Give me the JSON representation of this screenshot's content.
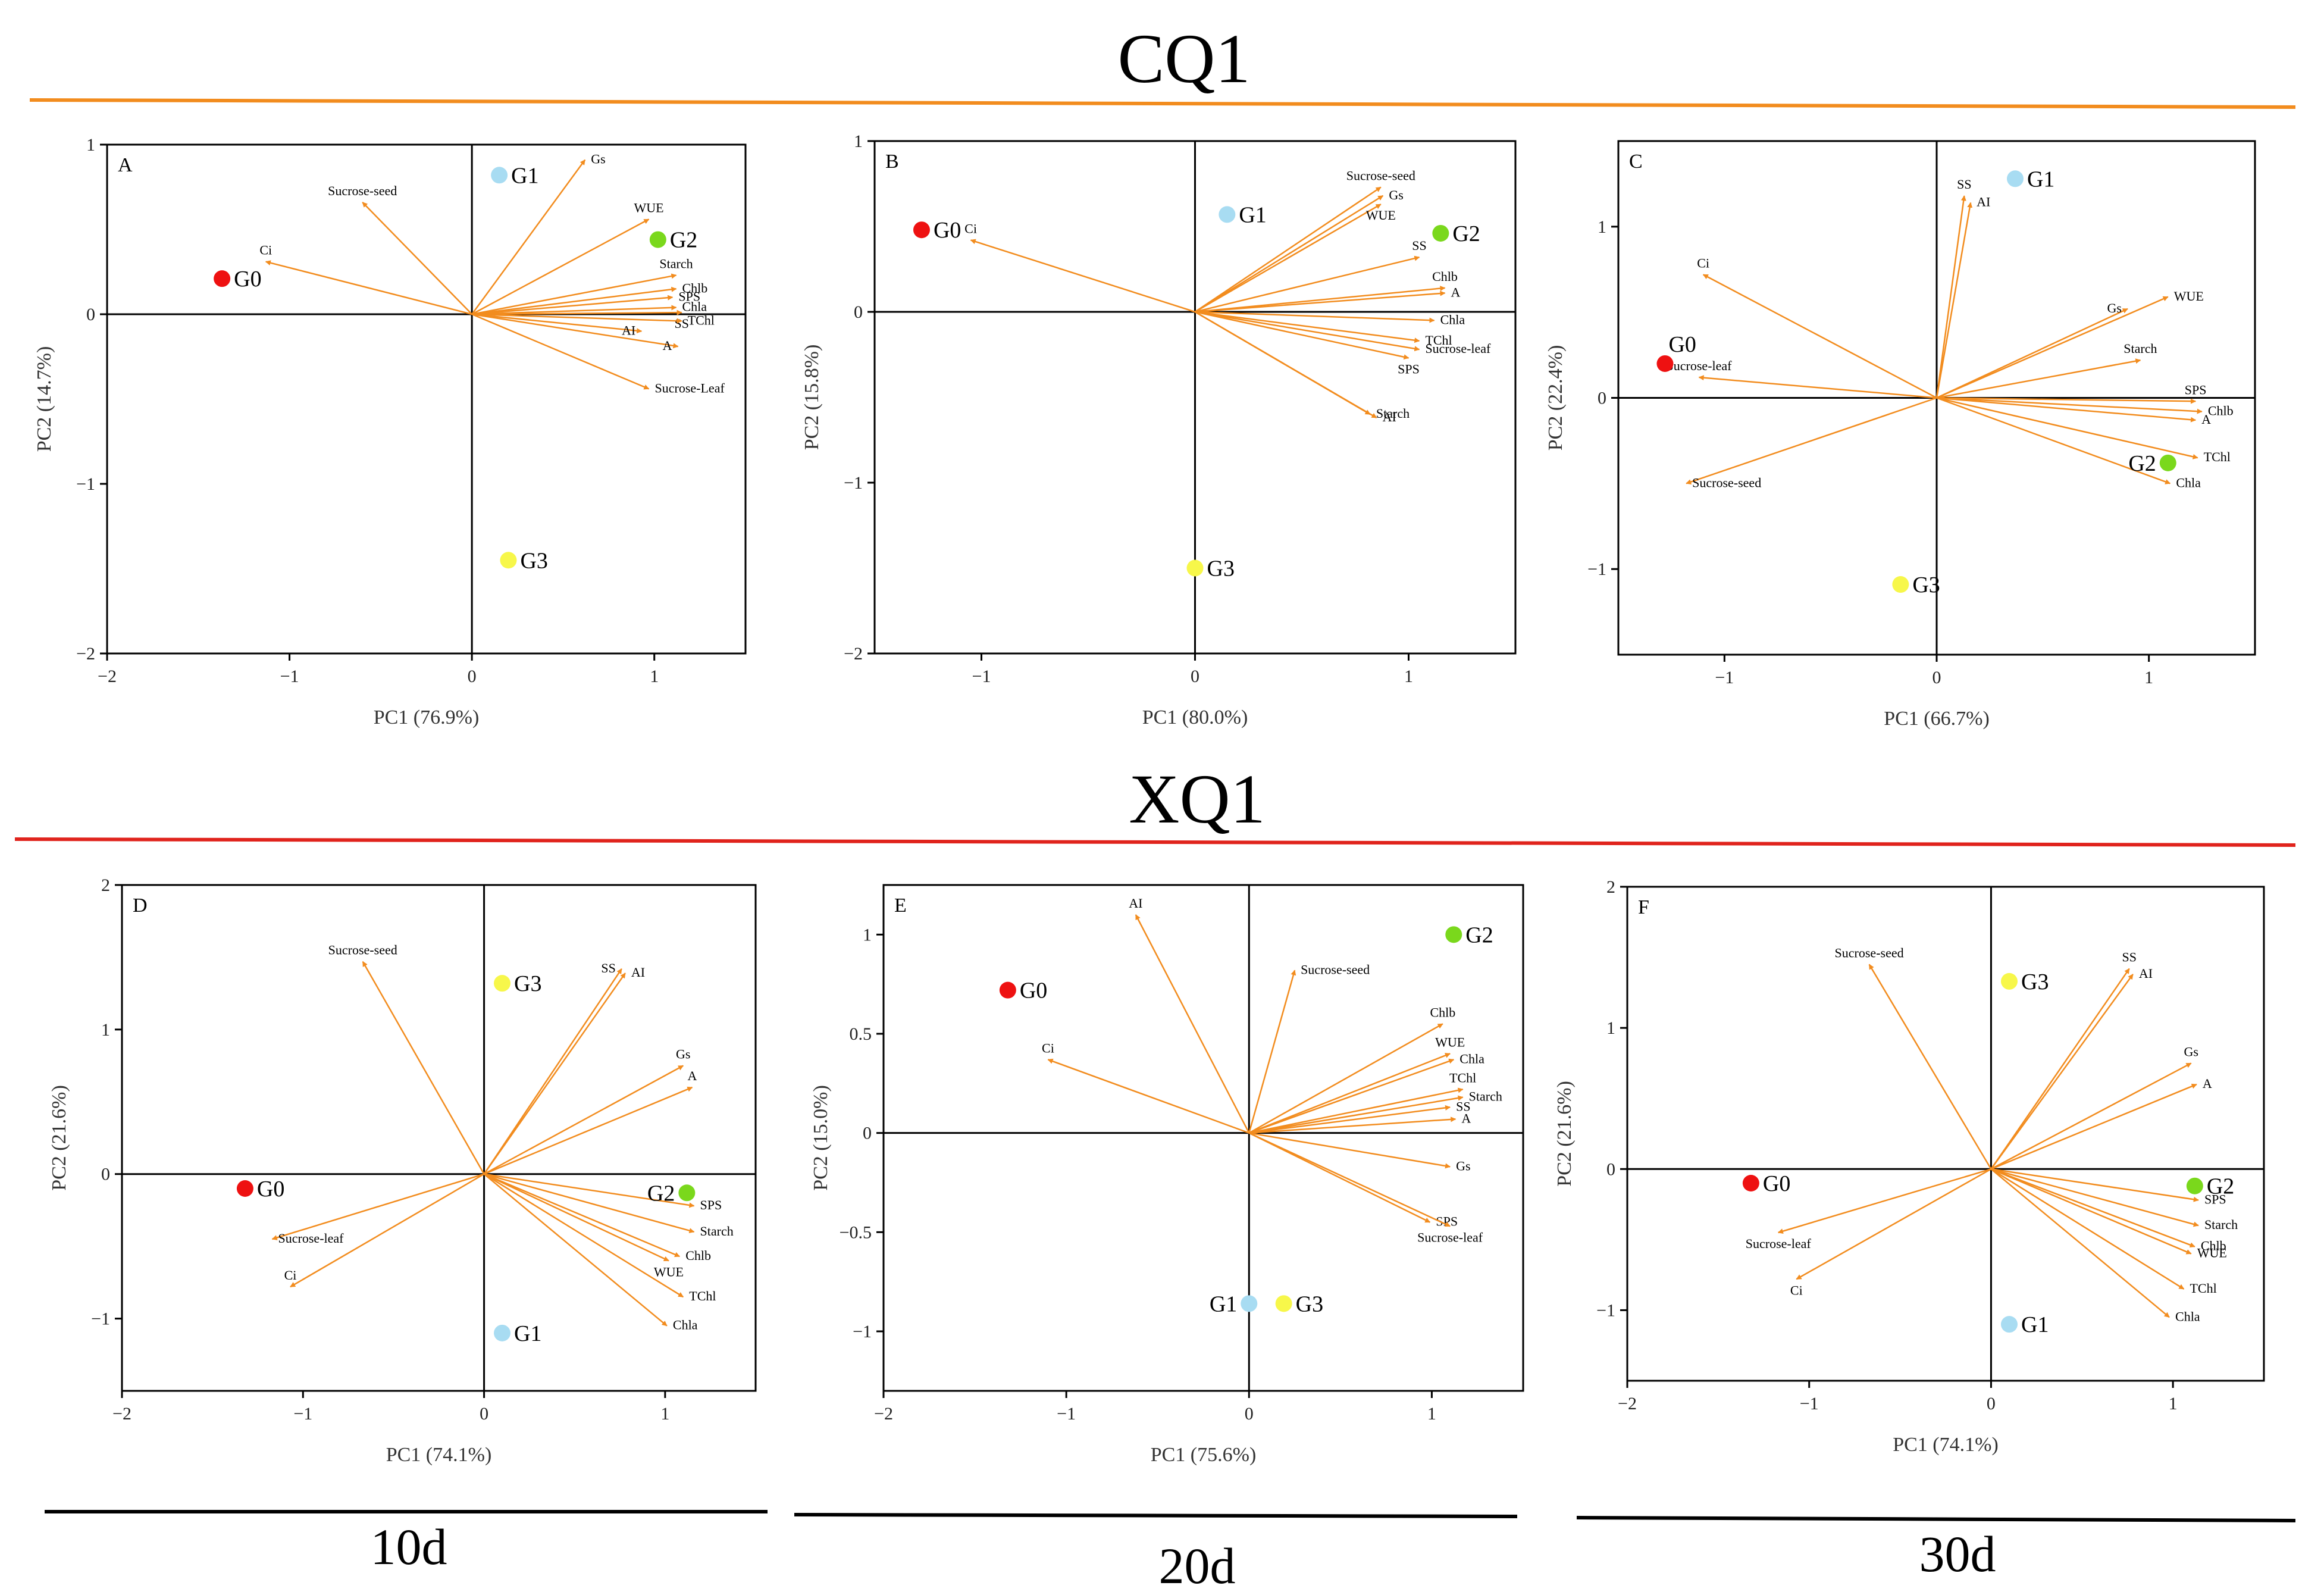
{
  "colors": {
    "vector": "#f28c1e",
    "cq1_rule": "#f28c1e",
    "xq1_rule": "#e0231c",
    "time_rule": "#000000",
    "G0": "#ee1111",
    "G1": "#a8dcf2",
    "G2": "#7ad81c",
    "G3": "#f7f74a"
  },
  "section_titles": {
    "cq1": "CQ1",
    "xq1": "XQ1"
  },
  "time_labels": [
    "10d",
    "20d",
    "30d"
  ],
  "chart_data": [
    {
      "type": "scatter",
      "panel": "A",
      "xlabel": "PC1 (76.9%)",
      "ylabel": "PC2 (14.7%)",
      "xlim": [
        -2,
        1.5
      ],
      "ylim": [
        -2,
        1
      ],
      "xticks": [
        -2,
        -1,
        0,
        1
      ],
      "yticks": [
        -2,
        -1,
        0,
        1
      ],
      "points": [
        {
          "name": "G0",
          "x": -1.37,
          "y": 0.21,
          "color": "G0",
          "lpos": "right"
        },
        {
          "name": "G1",
          "x": 0.15,
          "y": 0.82,
          "color": "G1",
          "lpos": "right"
        },
        {
          "name": "G2",
          "x": 1.02,
          "y": 0.44,
          "color": "G2",
          "lpos": "right"
        },
        {
          "name": "G3",
          "x": 0.2,
          "y": -1.45,
          "color": "G3",
          "lpos": "right"
        }
      ],
      "vectors": [
        {
          "name": "Sucrose-seed",
          "x": -0.6,
          "y": 0.66,
          "lpos": "above"
        },
        {
          "name": "Ci",
          "x": -1.13,
          "y": 0.31,
          "lpos": "above"
        },
        {
          "name": "Gs",
          "x": 0.62,
          "y": 0.91,
          "lpos": "right"
        },
        {
          "name": "WUE",
          "x": 0.97,
          "y": 0.56,
          "lpos": "above"
        },
        {
          "name": "Starch",
          "x": 1.12,
          "y": 0.23,
          "lpos": "above"
        },
        {
          "name": "Chlb",
          "x": 1.12,
          "y": 0.15,
          "lpos": "right"
        },
        {
          "name": "SPS",
          "x": 1.1,
          "y": 0.1,
          "lpos": "right"
        },
        {
          "name": "Chla",
          "x": 1.12,
          "y": 0.04,
          "lpos": "right"
        },
        {
          "name": "SS",
          "x": 1.15,
          "y": 0.01,
          "lpos": "below"
        },
        {
          "name": "TChl",
          "x": 1.15,
          "y": -0.04,
          "lpos": "right"
        },
        {
          "name": "AI",
          "x": 0.93,
          "y": -0.1,
          "lpos": "left"
        },
        {
          "name": "A",
          "x": 1.13,
          "y": -0.19,
          "lpos": "left"
        },
        {
          "name": "Sucrose-Leaf",
          "x": 0.97,
          "y": -0.44,
          "lpos": "right"
        }
      ]
    },
    {
      "type": "scatter",
      "panel": "B",
      "xlabel": "PC1 (80.0%)",
      "ylabel": "PC2 (15.8%)",
      "xlim": [
        -1.5,
        1.5
      ],
      "ylim": [
        -2,
        1
      ],
      "xticks": [
        -1,
        0,
        1
      ],
      "yticks": [
        -2,
        -1,
        0,
        1
      ],
      "points": [
        {
          "name": "G0",
          "x": -1.28,
          "y": 0.48,
          "color": "G0",
          "lpos": "right"
        },
        {
          "name": "G1",
          "x": 0.15,
          "y": 0.57,
          "color": "G1",
          "lpos": "right"
        },
        {
          "name": "G2",
          "x": 1.15,
          "y": 0.46,
          "color": "G2",
          "lpos": "right"
        },
        {
          "name": "G3",
          "x": 0.0,
          "y": -1.5,
          "color": "G3",
          "lpos": "right"
        }
      ],
      "vectors": [
        {
          "name": "Ci",
          "x": -1.05,
          "y": 0.42,
          "lpos": "above"
        },
        {
          "name": "Sucrose-seed",
          "x": 0.87,
          "y": 0.73,
          "lpos": "above"
        },
        {
          "name": "Gs",
          "x": 0.88,
          "y": 0.68,
          "lpos": "right"
        },
        {
          "name": "WUE",
          "x": 0.87,
          "y": 0.63,
          "lpos": "below"
        },
        {
          "name": "SS",
          "x": 1.05,
          "y": 0.32,
          "lpos": "above"
        },
        {
          "name": "Chlb",
          "x": 1.17,
          "y": 0.14,
          "lpos": "above"
        },
        {
          "name": "A",
          "x": 1.17,
          "y": 0.11,
          "lpos": "right"
        },
        {
          "name": "Chla",
          "x": 1.12,
          "y": -0.05,
          "lpos": "right"
        },
        {
          "name": "TChl",
          "x": 1.05,
          "y": -0.17,
          "lpos": "right"
        },
        {
          "name": "Sucrose-leaf",
          "x": 1.05,
          "y": -0.22,
          "lpos": "right"
        },
        {
          "name": "SPS",
          "x": 1.0,
          "y": -0.27,
          "lpos": "below"
        },
        {
          "name": "Starch",
          "x": 0.82,
          "y": -0.6,
          "lpos": "right"
        },
        {
          "name": "AI",
          "x": 0.85,
          "y": -0.62,
          "lpos": "right"
        }
      ]
    },
    {
      "type": "scatter",
      "panel": "C",
      "xlabel": "PC1 (66.7%)",
      "ylabel": "PC2 (22.4%)",
      "xlim": [
        -1.5,
        1.5
      ],
      "ylim": [
        -1.5,
        1.5
      ],
      "xticks": [
        -1,
        0,
        1
      ],
      "yticks": [
        -1,
        0,
        1
      ],
      "points": [
        {
          "name": "G0",
          "x": -1.28,
          "y": 0.2,
          "color": "G0",
          "lpos": "aboveright"
        },
        {
          "name": "G1",
          "x": 0.37,
          "y": 1.28,
          "color": "G1",
          "lpos": "right"
        },
        {
          "name": "G2",
          "x": 1.09,
          "y": -0.38,
          "color": "G2",
          "lpos": "left"
        },
        {
          "name": "G3",
          "x": -0.17,
          "y": -1.09,
          "color": "G3",
          "lpos": "right"
        }
      ],
      "vectors": [
        {
          "name": "SS",
          "x": 0.13,
          "y": 1.18,
          "lpos": "above"
        },
        {
          "name": "AI",
          "x": 0.16,
          "y": 1.14,
          "lpos": "right"
        },
        {
          "name": "Ci",
          "x": -1.1,
          "y": 0.72,
          "lpos": "above"
        },
        {
          "name": "Gs",
          "x": 0.9,
          "y": 0.52,
          "lpos": "left"
        },
        {
          "name": "WUE",
          "x": 1.09,
          "y": 0.59,
          "lpos": "right"
        },
        {
          "name": "Starch",
          "x": 0.96,
          "y": 0.22,
          "lpos": "above"
        },
        {
          "name": "Sucrose-leaf",
          "x": -1.12,
          "y": 0.12,
          "lpos": "above"
        },
        {
          "name": "SPS",
          "x": 1.22,
          "y": -0.02,
          "lpos": "above"
        },
        {
          "name": "Chlb",
          "x": 1.25,
          "y": -0.08,
          "lpos": "right"
        },
        {
          "name": "A",
          "x": 1.22,
          "y": -0.13,
          "lpos": "right"
        },
        {
          "name": "TChl",
          "x": 1.23,
          "y": -0.35,
          "lpos": "right"
        },
        {
          "name": "Chla",
          "x": 1.1,
          "y": -0.5,
          "lpos": "right"
        },
        {
          "name": "Sucrose-seed",
          "x": -1.18,
          "y": -0.5,
          "lpos": "right"
        }
      ]
    },
    {
      "type": "scatter",
      "panel": "D",
      "xlabel": "PC1 (74.1%)",
      "ylabel": "PC2 (21.6%)",
      "xlim": [
        -2,
        1.5
      ],
      "ylim": [
        -1.5,
        2
      ],
      "xticks": [
        -2,
        -1,
        0,
        1
      ],
      "yticks": [
        -1,
        0,
        1,
        2
      ],
      "points": [
        {
          "name": "G0",
          "x": -1.32,
          "y": -0.1,
          "color": "G0",
          "lpos": "right"
        },
        {
          "name": "G1",
          "x": 0.1,
          "y": -1.1,
          "color": "G1",
          "lpos": "right"
        },
        {
          "name": "G2",
          "x": 1.12,
          "y": -0.13,
          "color": "G2",
          "lpos": "left"
        },
        {
          "name": "G3",
          "x": 0.1,
          "y": 1.32,
          "color": "G3",
          "lpos": "right"
        }
      ],
      "vectors": [
        {
          "name": "Sucrose-seed",
          "x": -0.67,
          "y": 1.47,
          "lpos": "above"
        },
        {
          "name": "SS",
          "x": 0.76,
          "y": 1.42,
          "lpos": "left"
        },
        {
          "name": "AI",
          "x": 0.78,
          "y": 1.39,
          "lpos": "right"
        },
        {
          "name": "Gs",
          "x": 1.1,
          "y": 0.75,
          "lpos": "above"
        },
        {
          "name": "A",
          "x": 1.15,
          "y": 0.6,
          "lpos": "above"
        },
        {
          "name": "SPS",
          "x": 1.16,
          "y": -0.22,
          "lpos": "right"
        },
        {
          "name": "Starch",
          "x": 1.16,
          "y": -0.4,
          "lpos": "right"
        },
        {
          "name": "Chlb",
          "x": 1.08,
          "y": -0.57,
          "lpos": "right"
        },
        {
          "name": "WUE",
          "x": 1.02,
          "y": -0.6,
          "lpos": "below"
        },
        {
          "name": "TChl",
          "x": 1.1,
          "y": -0.85,
          "lpos": "right"
        },
        {
          "name": "Chla",
          "x": 1.01,
          "y": -1.05,
          "lpos": "right"
        },
        {
          "name": "Sucrose-leaf",
          "x": -1.17,
          "y": -0.45,
          "lpos": "right"
        },
        {
          "name": "Ci",
          "x": -1.07,
          "y": -0.78,
          "lpos": "above"
        }
      ]
    },
    {
      "type": "scatter",
      "panel": "E",
      "xlabel": "PC1 (75.6%)",
      "ylabel": "PC2 (15.0%)",
      "xlim": [
        -2,
        1.5
      ],
      "ylim": [
        -1.3,
        1.25
      ],
      "xticks": [
        -2,
        -1,
        0,
        1
      ],
      "yticks": [
        -1.0,
        -0.5,
        0.0,
        0.5,
        1.0
      ],
      "points": [
        {
          "name": "G0",
          "x": -1.32,
          "y": 0.72,
          "color": "G0",
          "lpos": "right"
        },
        {
          "name": "G1",
          "x": 0.0,
          "y": -0.86,
          "color": "G1",
          "lpos": "left"
        },
        {
          "name": "G2",
          "x": 1.12,
          "y": 1.0,
          "color": "G2",
          "lpos": "right"
        },
        {
          "name": "G3",
          "x": 0.19,
          "y": -0.86,
          "color": "G3",
          "lpos": "right"
        }
      ],
      "vectors": [
        {
          "name": "AI",
          "x": -0.62,
          "y": 1.1,
          "lpos": "above"
        },
        {
          "name": "Ci",
          "x": -1.1,
          "y": 0.37,
          "lpos": "above"
        },
        {
          "name": "Sucrose-seed",
          "x": 0.25,
          "y": 0.82,
          "lpos": "right"
        },
        {
          "name": "Chlb",
          "x": 1.06,
          "y": 0.55,
          "lpos": "above"
        },
        {
          "name": "WUE",
          "x": 1.1,
          "y": 0.4,
          "lpos": "above"
        },
        {
          "name": "Chla",
          "x": 1.12,
          "y": 0.37,
          "lpos": "right"
        },
        {
          "name": "TChl",
          "x": 1.17,
          "y": 0.22,
          "lpos": "above"
        },
        {
          "name": "Starch",
          "x": 1.17,
          "y": 0.18,
          "lpos": "right"
        },
        {
          "name": "SS",
          "x": 1.1,
          "y": 0.13,
          "lpos": "right"
        },
        {
          "name": "A",
          "x": 1.13,
          "y": 0.07,
          "lpos": "right"
        },
        {
          "name": "Gs",
          "x": 1.1,
          "y": -0.17,
          "lpos": "right"
        },
        {
          "name": "SPS",
          "x": 0.99,
          "y": -0.45,
          "lpos": "right"
        },
        {
          "name": "Sucrose-leaf",
          "x": 1.1,
          "y": -0.47,
          "lpos": "below"
        }
      ]
    },
    {
      "type": "scatter",
      "panel": "F",
      "xlabel": "PC1 (74.1%)",
      "ylabel": "PC2 (21.6%)",
      "xlim": [
        -2,
        1.5
      ],
      "ylim": [
        -1.5,
        2
      ],
      "xticks": [
        -2,
        -1,
        0,
        1
      ],
      "yticks": [
        -1,
        0,
        1,
        2
      ],
      "points": [
        {
          "name": "G0",
          "x": -1.32,
          "y": -0.1,
          "color": "G0",
          "lpos": "right"
        },
        {
          "name": "G1",
          "x": 0.1,
          "y": -1.1,
          "color": "G1",
          "lpos": "right"
        },
        {
          "name": "G2",
          "x": 1.12,
          "y": -0.12,
          "color": "G2",
          "lpos": "right"
        },
        {
          "name": "G3",
          "x": 0.1,
          "y": 1.33,
          "color": "G3",
          "lpos": "right"
        }
      ],
      "vectors": [
        {
          "name": "Sucrose-seed",
          "x": -0.67,
          "y": 1.45,
          "lpos": "above"
        },
        {
          "name": "SS",
          "x": 0.76,
          "y": 1.42,
          "lpos": "above"
        },
        {
          "name": "AI",
          "x": 0.78,
          "y": 1.38,
          "lpos": "right"
        },
        {
          "name": "Gs",
          "x": 1.1,
          "y": 0.75,
          "lpos": "above"
        },
        {
          "name": "A",
          "x": 1.13,
          "y": 0.6,
          "lpos": "right"
        },
        {
          "name": "SPS",
          "x": 1.14,
          "y": -0.22,
          "lpos": "right"
        },
        {
          "name": "Starch",
          "x": 1.14,
          "y": -0.4,
          "lpos": "right"
        },
        {
          "name": "Chlb",
          "x": 1.12,
          "y": -0.55,
          "lpos": "right"
        },
        {
          "name": "WUE",
          "x": 1.1,
          "y": -0.6,
          "lpos": "right"
        },
        {
          "name": "TChl",
          "x": 1.06,
          "y": -0.85,
          "lpos": "right"
        },
        {
          "name": "Chla",
          "x": 0.98,
          "y": -1.05,
          "lpos": "right"
        },
        {
          "name": "Sucrose-leaf",
          "x": -1.17,
          "y": -0.45,
          "lpos": "below"
        },
        {
          "name": "Ci",
          "x": -1.07,
          "y": -0.78,
          "lpos": "below"
        }
      ]
    }
  ]
}
